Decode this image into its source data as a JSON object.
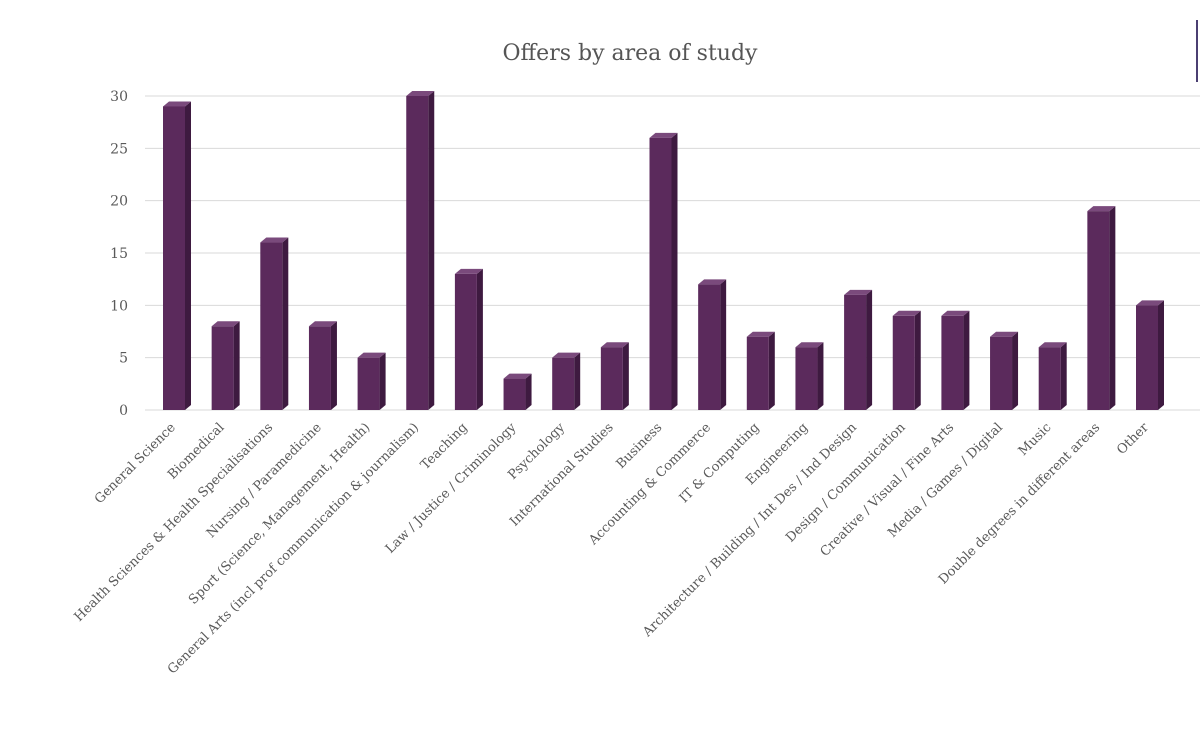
{
  "chart_data": {
    "type": "bar",
    "title": "Offers by area of study",
    "xlabel": "",
    "ylabel": "",
    "ylim": [
      0,
      30
    ],
    "yticks": [
      0,
      5,
      10,
      15,
      20,
      25,
      30
    ],
    "grid": true,
    "legend": "none",
    "categories": [
      "General Science",
      "Biomedical",
      "Health Sciences & Health Specialisations",
      "Nursing / Paramedicine",
      "Sport (Science, Management, Health)",
      "General Arts (incl prof communication & journalism)",
      "Teaching",
      "Law / Justice / Criminology",
      "Psychology",
      "International Studies",
      "Business",
      "Accounting & Commerce",
      "IT & Computing",
      "Engineering",
      "Architecture / Building / Int Des / Ind Design",
      "Design / Communication",
      "Creative / Visual / Fine Arts",
      "Media / Games / Digital",
      "Music",
      "Double degrees in different areas",
      "Other"
    ],
    "values": [
      29,
      8,
      16,
      8,
      5,
      30,
      13,
      3,
      5,
      6,
      26,
      12,
      7,
      6,
      11,
      9,
      9,
      7,
      6,
      19,
      10
    ],
    "colors": {
      "bar_front": "#5b2a5c",
      "bar_side": "#3e1a40",
      "bar_top": "#7a4a7c",
      "grid": "#d9d9d9",
      "text": "#595959"
    }
  }
}
